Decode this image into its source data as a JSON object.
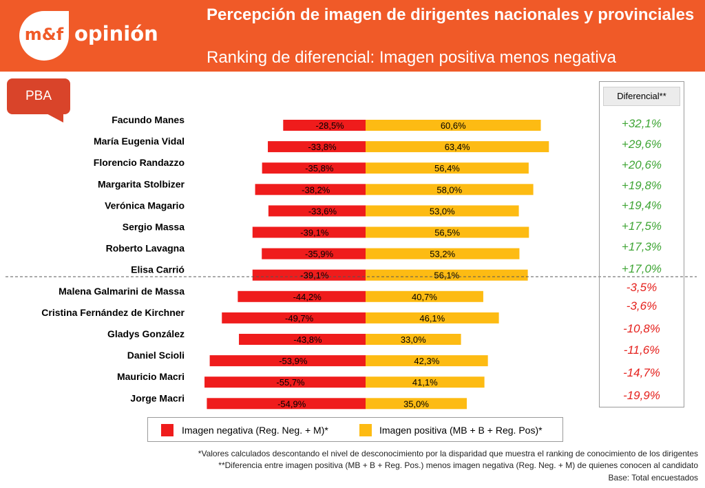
{
  "header": {
    "logo_mark": "m&f",
    "logo_word": "opinión",
    "title": "Percepción de imagen de dirigentes nacionales y provinciales",
    "subtitle": "Ranking de diferencial: Imagen positiva menos negativa"
  },
  "region_label": "PBA",
  "colors": {
    "negative": "#ef1c1c",
    "positive": "#fdbb13",
    "header": "#f05a28",
    "diff_positive": "#3fa535",
    "diff_negative": "#e5201c"
  },
  "chart_data": {
    "type": "bar",
    "orientation": "horizontal-diverging",
    "categories": [
      "Facundo Manes",
      "María Eugenia Vidal",
      "Florencio Randazzo",
      "Margarita Stolbizer",
      "Verónica Magario",
      "Sergio Massa",
      "Roberto Lavagna",
      "Elisa Carrió",
      "Malena Galmarini de Massa",
      "Cristina Fernández de Kirchner",
      "Gladys González",
      "Daniel Scioli",
      "Mauricio Macri",
      "Jorge Macri"
    ],
    "series": [
      {
        "name": "Imagen negativa (Reg. Neg. + M)*",
        "values": [
          -28.5,
          -33.8,
          -35.8,
          -38.2,
          -33.6,
          -39.1,
          -35.9,
          -39.1,
          -44.2,
          -49.7,
          -43.8,
          -53.9,
          -55.7,
          -54.9
        ],
        "labels": [
          "-28,5%",
          "-33,8%",
          "-35,8%",
          "-38,2%",
          "-33,6%",
          "-39,1%",
          "-35,9%",
          "-39,1%",
          "-44,2%",
          "-49,7%",
          "-43,8%",
          "-53,9%",
          "-55,7%",
          "-54,9%"
        ]
      },
      {
        "name": "Imagen positiva (MB + B + Reg. Pos)*",
        "values": [
          60.6,
          63.4,
          56.4,
          58.0,
          53.0,
          56.5,
          53.2,
          56.1,
          40.7,
          46.1,
          33.0,
          42.3,
          41.1,
          35.0
        ],
        "labels": [
          "60,6%",
          "63,4%",
          "56,4%",
          "58,0%",
          "53,0%",
          "56,5%",
          "53,2%",
          "56,1%",
          "40,7%",
          "46,1%",
          "33,0%",
          "42,3%",
          "41,1%",
          "35,0%"
        ]
      }
    ],
    "differential": {
      "header": "Diferencial**",
      "values": [
        32.1,
        29.6,
        20.6,
        19.8,
        19.4,
        17.5,
        17.3,
        17.0,
        -3.5,
        -3.6,
        -10.8,
        -11.6,
        -14.7,
        -19.9
      ],
      "labels": [
        "+32,1%",
        "+29,6%",
        "+20,6%",
        "+19,8%",
        "+19,4%",
        "+17,5%",
        "+17,3%",
        "+17,0%",
        "-3,5%",
        "-3,6%",
        "-10,8%",
        "-11,6%",
        "-14,7%",
        "-19,9%"
      ]
    },
    "legend": [
      "Imagen negativa (Reg. Neg. + M)*",
      "Imagen positiva (MB + B + Reg. Pos)*"
    ]
  },
  "footnotes": [
    "*Valores calculados descontando el nivel de desconocimiento por la disparidad que muestra el ranking de conocimiento de los dirigentes",
    "**Diferencia entre imagen positiva (MB + B + Reg. Pos.) menos imagen negativa (Reg. Neg. + M) de quienes conocen al candidato",
    "Base: Total encuestados"
  ]
}
